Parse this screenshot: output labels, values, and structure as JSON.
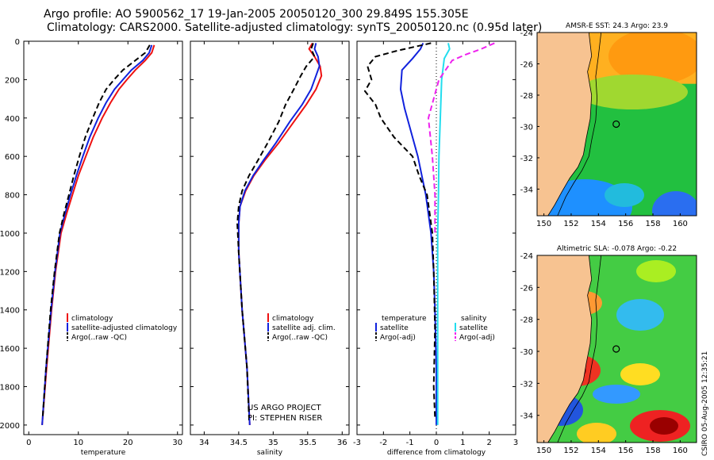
{
  "header": {
    "title_line1": "Argo profile: AO 5900562_17 19-Jan-2005 20050120_300 29.849S 155.305E",
    "title_line2": "Climatology: CARS2000. Satellite-adjusted climatology: synTS_20050120.nc (0.95d later)"
  },
  "colors": {
    "climatology": "#ee1111",
    "satellite": "#1122dd",
    "argo": "#000000",
    "satellite_sal": "#22ddee",
    "argo_sal": "#ee22ee"
  },
  "chart_data": [
    {
      "type": "line",
      "id": "temperature",
      "xlabel": "temperature",
      "xlim": [
        -1,
        31
      ],
      "ylim": [
        2050,
        0
      ],
      "xticks": [
        "0",
        "10",
        "20",
        "30"
      ],
      "yticks": [
        "0",
        "200",
        "400",
        "600",
        "800",
        "1000",
        "1200",
        "1400",
        "1600",
        "1800",
        "2000"
      ],
      "legend": [
        "climatology",
        "satellite-adjusted climatology",
        "Argo(..raw -QC)"
      ],
      "series": [
        {
          "name": "climatology",
          "style": "solid",
          "color": "climatology",
          "x": [
            25.3,
            24.8,
            23.5,
            21.5,
            19.8,
            18.2,
            16.5,
            14.8,
            13.0,
            11.5,
            10.0,
            8.8,
            7.6,
            6.5,
            5.4,
            4.6,
            3.6,
            2.7
          ],
          "y": [
            20,
            60,
            100,
            150,
            200,
            250,
            320,
            400,
            500,
            600,
            700,
            800,
            900,
            1000,
            1200,
            1400,
            1700,
            2000
          ]
        },
        {
          "name": "satellite-adjusted climatology",
          "style": "solid",
          "color": "satellite",
          "x": [
            24.8,
            24.3,
            23.0,
            20.7,
            19.0,
            17.3,
            15.6,
            14.0,
            12.3,
            10.9,
            9.6,
            8.4,
            7.3,
            6.3,
            5.3,
            4.5,
            3.5,
            2.7
          ],
          "y": [
            20,
            60,
            100,
            150,
            200,
            250,
            320,
            400,
            500,
            600,
            700,
            800,
            900,
            1000,
            1200,
            1400,
            1700,
            2000
          ]
        },
        {
          "name": "Argo(..raw -QC)",
          "style": "dashed",
          "color": "argo",
          "x": [
            24.4,
            23.5,
            21.5,
            19.0,
            17.2,
            15.6,
            14.2,
            12.9,
            11.4,
            10.2,
            9.1,
            8.1,
            7.1,
            6.2,
            5.2,
            4.4,
            3.5,
            2.8
          ],
          "y": [
            20,
            60,
            100,
            150,
            200,
            250,
            320,
            400,
            500,
            600,
            700,
            800,
            900,
            1000,
            1200,
            1400,
            1700,
            1960
          ]
        }
      ]
    },
    {
      "type": "line",
      "id": "salinity",
      "xlabel": "salinity",
      "xlim": [
        33.8,
        36.1
      ],
      "ylim": [
        2050,
        0
      ],
      "xticks": [
        "34",
        "34.5",
        "35",
        "35.5",
        "36"
      ],
      "legend": [
        "climatology",
        "satellite adj. clim.",
        "Argo(..raw -QC)"
      ],
      "credit": [
        "US ARGO PROJECT",
        "PI: STEPHEN RISER"
      ],
      "series": [
        {
          "name": "climatology",
          "style": "solid",
          "color": "climatology",
          "x": [
            35.57,
            35.52,
            35.6,
            35.68,
            35.7,
            35.62,
            35.48,
            35.3,
            35.08,
            34.88,
            34.72,
            34.6,
            34.52,
            34.5,
            34.5,
            34.55,
            34.62,
            34.66
          ],
          "y": [
            10,
            40,
            80,
            130,
            180,
            250,
            330,
            420,
            530,
            620,
            700,
            780,
            860,
            950,
            1100,
            1400,
            1700,
            2000
          ]
        },
        {
          "name": "satellite adj. clim.",
          "style": "solid",
          "color": "satellite",
          "x": [
            35.62,
            35.6,
            35.65,
            35.67,
            35.62,
            35.55,
            35.42,
            35.24,
            35.04,
            34.86,
            34.71,
            34.59,
            34.52,
            34.5,
            34.5,
            34.55,
            34.62,
            34.66
          ],
          "y": [
            10,
            40,
            80,
            130,
            180,
            250,
            330,
            420,
            530,
            620,
            700,
            780,
            860,
            950,
            1100,
            1400,
            1700,
            2000
          ]
        },
        {
          "name": "Argo(..raw -QC)",
          "style": "dashed",
          "color": "argo",
          "x": [
            35.58,
            35.55,
            35.6,
            35.48,
            35.4,
            35.3,
            35.18,
            35.08,
            34.92,
            34.78,
            34.65,
            34.55,
            34.5,
            34.48,
            34.5,
            34.55,
            34.62,
            34.65
          ],
          "y": [
            10,
            40,
            80,
            130,
            180,
            250,
            330,
            420,
            530,
            620,
            700,
            780,
            860,
            950,
            1100,
            1400,
            1700,
            1960
          ]
        }
      ]
    },
    {
      "type": "line",
      "id": "difference",
      "xlabel": "difference from climatology",
      "xlim": [
        -3,
        3
      ],
      "ylim": [
        2050,
        0
      ],
      "xticks": [
        "-3",
        "-2",
        "-1",
        "0",
        "1",
        "2",
        "3"
      ],
      "legend_left": {
        "header": "temperature",
        "items": [
          "satellite",
          "Argo(-adj)"
        ]
      },
      "legend_right": {
        "header": "salinity",
        "items": [
          "satellite",
          "Argo(-adj)"
        ]
      },
      "series": [
        {
          "name": "temperature satellite",
          "style": "solid",
          "color": "satellite",
          "x": [
            -0.5,
            -0.6,
            -0.9,
            -1.3,
            -1.35,
            -1.2,
            -0.9,
            -0.7,
            -0.55,
            -0.4,
            -0.3,
            -0.2,
            -0.1,
            -0.05,
            0,
            0
          ],
          "y": [
            10,
            40,
            90,
            150,
            250,
            350,
            500,
            600,
            700,
            800,
            900,
            1000,
            1200,
            1400,
            1700,
            2000
          ]
        },
        {
          "name": "temperature Argo(-adj)",
          "style": "dashed",
          "color": "argo",
          "x": [
            -0.2,
            -1.5,
            -2.3,
            -2.6,
            -2.45,
            -2.7,
            -2.3,
            -2.1,
            -1.6,
            -0.9,
            -0.65,
            -0.35,
            -0.25,
            -0.15,
            -0.1,
            -0.05,
            -0.1,
            -0.05
          ],
          "y": [
            10,
            50,
            80,
            130,
            200,
            260,
            330,
            400,
            500,
            600,
            700,
            800,
            900,
            1000,
            1200,
            1500,
            1800,
            1960
          ]
        },
        {
          "name": "salinity satellite",
          "style": "solid",
          "color": "satellite_sal",
          "x": [
            0.45,
            0.5,
            0.3,
            0.2,
            0.15,
            0.1,
            0.08,
            0.05,
            0.05,
            0.05
          ],
          "y": [
            10,
            40,
            90,
            200,
            400,
            600,
            800,
            1000,
            1500,
            2000
          ]
        },
        {
          "name": "salinity Argo(-adj)",
          "style": "dashed",
          "color": "argo_sal",
          "x": [
            2.2,
            1.7,
            1.1,
            0.6,
            0.1,
            -0.3,
            -0.15,
            -0.05,
            -0.05
          ],
          "y": [
            10,
            40,
            70,
            100,
            200,
            400,
            600,
            800,
            1000
          ]
        }
      ]
    },
    {
      "type": "heatmap",
      "id": "sst_map",
      "title": "AMSR-E SST: 24.3 Argo: 23.9",
      "xlim": [
        149.5,
        161.2
      ],
      "ylim": [
        -35.7,
        -24
      ],
      "xticks": [
        "150",
        "152",
        "154",
        "156",
        "158",
        "160"
      ],
      "yticks": [
        "-24",
        "-26",
        "-28",
        "-30",
        "-32",
        "-34"
      ],
      "marker": {
        "lon": 155.305,
        "lat": -29.849
      }
    },
    {
      "type": "heatmap",
      "id": "sla_map",
      "title": "Altimetric SLA: -0.078 Argo: -0.22",
      "xlim": [
        149.5,
        161.2
      ],
      "ylim": [
        -35.7,
        -24
      ],
      "xticks": [
        "150",
        "152",
        "154",
        "156",
        "158",
        "160"
      ],
      "yticks": [
        "-24",
        "-26",
        "-28",
        "-30",
        "-32",
        "-34"
      ],
      "marker": {
        "lon": 155.305,
        "lat": -29.849
      }
    }
  ],
  "side_label": "CSIRO 05-Aug-2005 12:35:21"
}
